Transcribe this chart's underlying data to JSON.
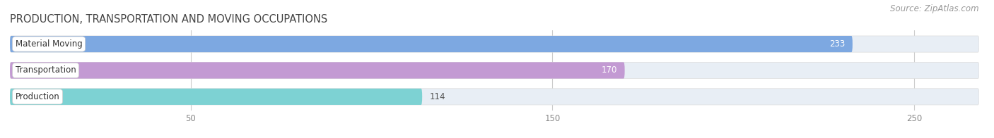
{
  "title": "PRODUCTION, TRANSPORTATION AND MOVING OCCUPATIONS",
  "source": "Source: ZipAtlas.com",
  "categories": [
    "Material Moving",
    "Transportation",
    "Production"
  ],
  "values": [
    233,
    170,
    114
  ],
  "bar_colors": [
    "#6699dd",
    "#bb88cc",
    "#66cccc"
  ],
  "bar_bg_color": "#e8eef5",
  "value_labels_inside": [
    true,
    true,
    false
  ],
  "value_label_color_inside": "#ffffff",
  "value_label_color_outside": "#555555",
  "xlim_max": 268,
  "xticks": [
    50,
    150,
    250
  ],
  "tick_label_color": "#888888",
  "title_color": "#444444",
  "title_fontsize": 10.5,
  "source_fontsize": 8.5,
  "bar_height": 0.62,
  "figsize": [
    14.06,
    1.96
  ],
  "dpi": 100
}
